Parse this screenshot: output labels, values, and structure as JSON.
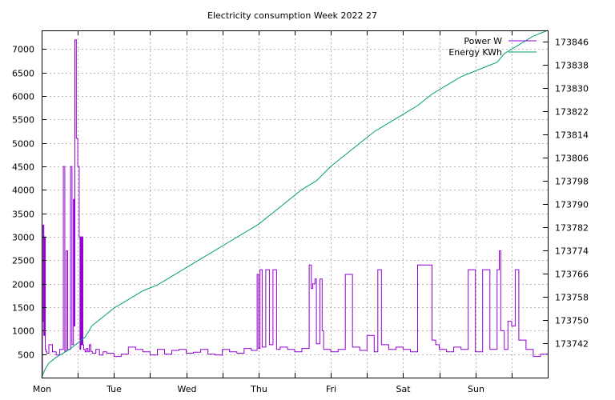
{
  "chart_data": {
    "type": "line",
    "title": "Electricity consumption Week 2022 27",
    "xlabel": "",
    "ylabel": "",
    "y2label": "",
    "x_ticks": [
      "Mon",
      "Tue",
      "Wed",
      "Thu",
      "Fri",
      "Sat",
      "Sun"
    ],
    "xlim": [
      0,
      7
    ],
    "ylim": [
      0,
      7400
    ],
    "y_ticks": [
      500,
      1000,
      1500,
      2000,
      2500,
      3000,
      3500,
      4000,
      4500,
      5000,
      5500,
      6000,
      6500,
      7000
    ],
    "y2lim": [
      173730,
      173850
    ],
    "y2_ticks": [
      173742,
      173750,
      173758,
      173766,
      173774,
      173782,
      173790,
      173798,
      173806,
      173814,
      173822,
      173830,
      173838,
      173846
    ],
    "grid": true,
    "legend_position": "top-right",
    "series": [
      {
        "name": "Power W",
        "axis": "left",
        "color": "#9400d3",
        "x": [
          0.0,
          0.01,
          0.02,
          0.03,
          0.04,
          0.05,
          0.06,
          0.07,
          0.1,
          0.15,
          0.2,
          0.25,
          0.3,
          0.32,
          0.34,
          0.36,
          0.4,
          0.42,
          0.44,
          0.45,
          0.46,
          0.48,
          0.5,
          0.52,
          0.53,
          0.54,
          0.55,
          0.56,
          0.57,
          0.58,
          0.59,
          0.6,
          0.62,
          0.64,
          0.66,
          0.68,
          0.7,
          0.75,
          0.8,
          0.85,
          0.9,
          1.0,
          1.1,
          1.2,
          1.3,
          1.4,
          1.5,
          1.6,
          1.7,
          1.8,
          1.9,
          2.0,
          2.1,
          2.2,
          2.3,
          2.4,
          2.5,
          2.6,
          2.7,
          2.8,
          2.9,
          2.98,
          3.0,
          3.02,
          3.05,
          3.1,
          3.15,
          3.2,
          3.25,
          3.3,
          3.4,
          3.5,
          3.6,
          3.7,
          3.73,
          3.75,
          3.78,
          3.8,
          3.85,
          3.88,
          3.9,
          4.0,
          4.1,
          4.2,
          4.3,
          4.4,
          4.5,
          4.6,
          4.65,
          4.7,
          4.8,
          4.9,
          5.0,
          5.1,
          5.2,
          5.3,
          5.4,
          5.45,
          5.5,
          5.6,
          5.7,
          5.8,
          5.9,
          6.0,
          6.1,
          6.2,
          6.3,
          6.33,
          6.35,
          6.4,
          6.45,
          6.5,
          6.55,
          6.6,
          6.7,
          6.8,
          6.9,
          7.0
        ],
        "values": [
          100,
          1200,
          3250,
          900,
          3000,
          600,
          560,
          520,
          700,
          550,
          480,
          600,
          4500,
          560,
          2700,
          600,
          4500,
          700,
          3800,
          1100,
          7200,
          5100,
          4500,
          3000,
          600,
          3000,
          700,
          3000,
          700,
          600,
          600,
          550,
          620,
          550,
          700,
          560,
          520,
          600,
          480,
          550,
          520,
          450,
          500,
          650,
          600,
          550,
          480,
          600,
          500,
          580,
          600,
          520,
          540,
          600,
          500,
          480,
          600,
          550,
          520,
          620,
          580,
          2200,
          620,
          2300,
          650,
          2300,
          700,
          2300,
          600,
          650,
          600,
          550,
          620,
          2400,
          1900,
          2000,
          2100,
          720,
          2100,
          1000,
          600,
          550,
          600,
          2200,
          650,
          580,
          900,
          550,
          2300,
          700,
          600,
          650,
          600,
          550,
          2400,
          2400,
          800,
          700,
          600,
          550,
          650,
          600,
          2300,
          550,
          2300,
          600,
          2300,
          2700,
          1000,
          600,
          1200,
          1100,
          2300,
          800,
          600,
          450,
          500,
          520
        ]
      },
      {
        "name": "Energy KWh",
        "axis": "right",
        "color": "#009e73",
        "x": [
          0.0,
          0.05,
          0.1,
          0.2,
          0.3,
          0.4,
          0.5,
          0.6,
          0.7,
          0.8,
          0.9,
          1.0,
          1.2,
          1.4,
          1.6,
          1.8,
          2.0,
          2.2,
          2.4,
          2.6,
          2.8,
          3.0,
          3.2,
          3.4,
          3.6,
          3.8,
          4.0,
          4.2,
          4.4,
          4.6,
          4.8,
          5.0,
          5.2,
          5.4,
          5.6,
          5.8,
          6.0,
          6.2,
          6.3,
          6.4,
          6.6,
          6.8,
          7.0
        ],
        "values": [
          173730,
          173733,
          173735,
          173737,
          173738.5,
          173740,
          173742,
          173744,
          173748,
          173750,
          173752,
          173754,
          173757,
          173760,
          173762,
          173765,
          173768,
          173771,
          173774,
          173777,
          173780,
          173783,
          173787,
          173791,
          173795,
          173798,
          173803,
          173807,
          173811,
          173815,
          173818,
          173821,
          173824,
          173828,
          173831,
          173834,
          173836,
          173838,
          173839,
          173842,
          173845,
          173848,
          173850
        ]
      }
    ]
  }
}
